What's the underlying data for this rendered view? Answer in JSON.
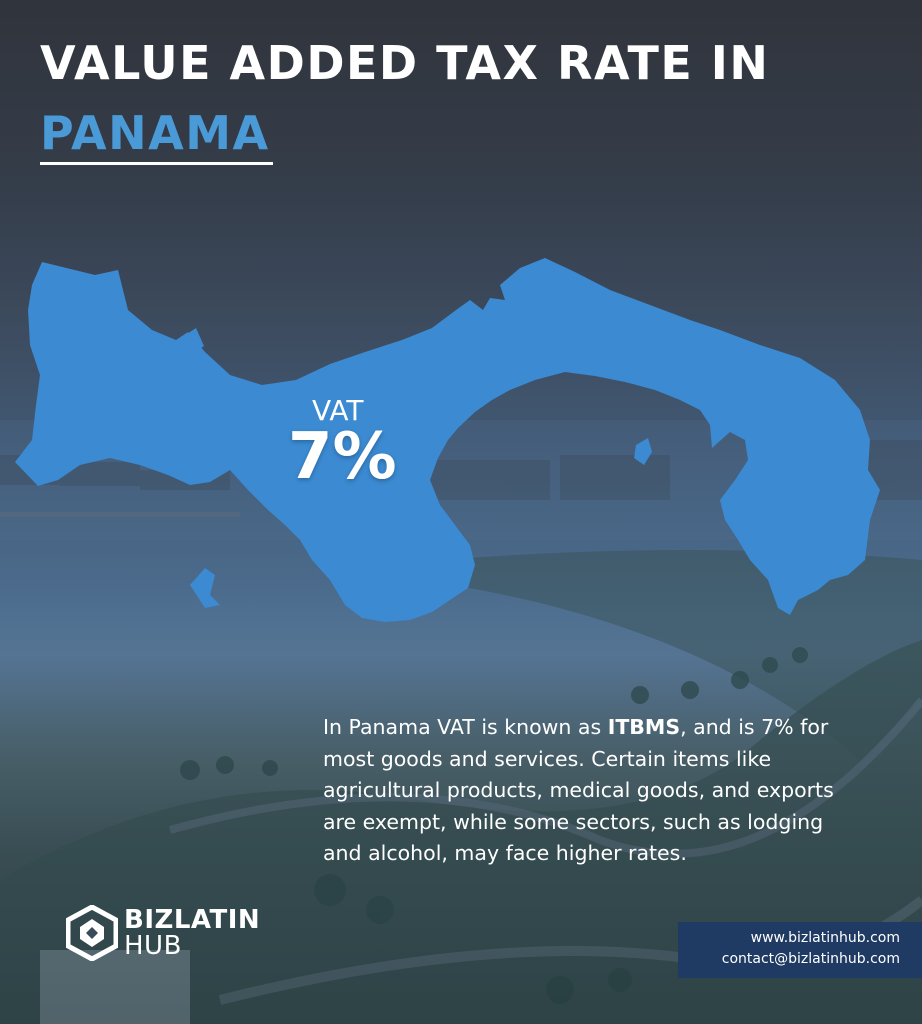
{
  "header": {
    "title": "VALUE ADDED TAX RATE IN",
    "subtitle": "PANAMA"
  },
  "map": {
    "country": "Panama",
    "vat_label": "VAT",
    "vat_value": "7%",
    "fill_color": "#3b8ad2"
  },
  "body": {
    "intro": "In Panama VAT is known as ",
    "highlight": "ITBMS",
    "rest": ", and is 7% for most goods and services. Certain items like agricultural products, medical goods, and exports are exempt, while some sectors, such as lodging and alcohol, may face higher rates."
  },
  "logo": {
    "line1": "BIZLATIN",
    "line2": "HUB",
    "icon": "bizlatinhub-logo-icon"
  },
  "contact": {
    "website": "www.bizlatinhub.com",
    "email": "contact@bizlatinhub.com",
    "background": "#1f3a63"
  },
  "colors": {
    "accent": "#4a9ad8",
    "text": "#ffffff"
  }
}
